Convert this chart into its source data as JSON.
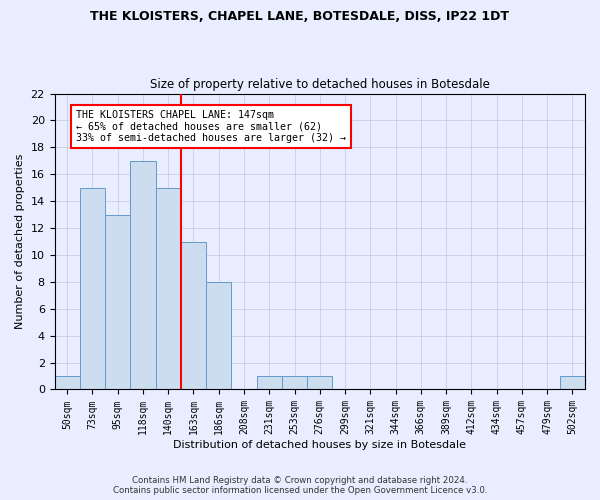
{
  "title1": "THE KLOISTERS, CHAPEL LANE, BOTESDALE, DISS, IP22 1DT",
  "title2": "Size of property relative to detached houses in Botesdale",
  "xlabel": "Distribution of detached houses by size in Botesdale",
  "ylabel": "Number of detached properties",
  "footer1": "Contains HM Land Registry data © Crown copyright and database right 2024.",
  "footer2": "Contains public sector information licensed under the Open Government Licence v3.0.",
  "bar_labels": [
    "50sqm",
    "73sqm",
    "95sqm",
    "118sqm",
    "140sqm",
    "163sqm",
    "186sqm",
    "208sqm",
    "231sqm",
    "253sqm",
    "276sqm",
    "299sqm",
    "321sqm",
    "344sqm",
    "366sqm",
    "389sqm",
    "412sqm",
    "434sqm",
    "457sqm",
    "479sqm",
    "502sqm"
  ],
  "bar_values": [
    1,
    15,
    13,
    17,
    15,
    11,
    8,
    0,
    1,
    1,
    1,
    0,
    0,
    0,
    0,
    0,
    0,
    0,
    0,
    0,
    1
  ],
  "bar_color": "#ccddf0",
  "bar_edge_color": "#6699cc",
  "vline_color": "red",
  "vline_pos": 4.5,
  "annotation_text": "THE KLOISTERS CHAPEL LANE: 147sqm\n← 65% of detached houses are smaller (62)\n33% of semi-detached houses are larger (32) →",
  "annotation_box_color": "white",
  "annotation_box_edge": "red",
  "ylim": [
    0,
    22
  ],
  "yticks": [
    0,
    2,
    4,
    6,
    8,
    10,
    12,
    14,
    16,
    18,
    20,
    22
  ],
  "background_color": "#e8eeff",
  "plot_background": "#e8eeff",
  "grid_color": "#c0c8d8"
}
